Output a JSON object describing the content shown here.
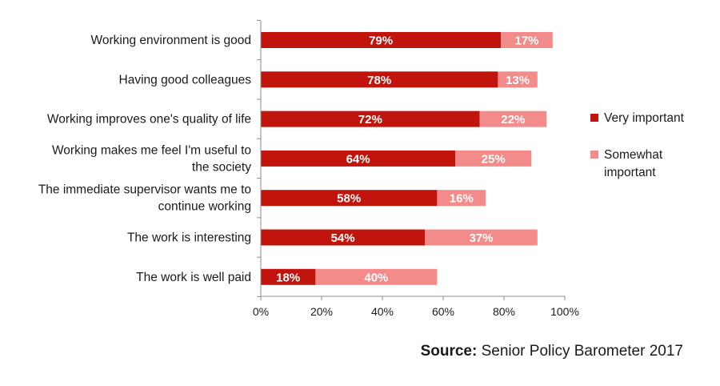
{
  "chart_data": {
    "type": "bar",
    "orientation": "horizontal",
    "stacked": true,
    "categories": [
      [
        "Working environment is good"
      ],
      [
        "Having good colleagues"
      ],
      [
        "Working improves one's quality of life"
      ],
      [
        "Working makes me feel I'm useful to",
        "the society"
      ],
      [
        "The immediate supervisor wants me to",
        "continue working"
      ],
      [
        "The work is interesting"
      ],
      [
        "The work is well paid"
      ]
    ],
    "series": [
      {
        "name": "Very important",
        "color": "#c0140c",
        "values": [
          79,
          78,
          72,
          64,
          58,
          54,
          18
        ],
        "labels": [
          "79%",
          "78%",
          "72%",
          "64%",
          "58%",
          "54%",
          "18%"
        ]
      },
      {
        "name": "Somewhat important",
        "color": "#f28b89",
        "values": [
          17,
          13,
          22,
          25,
          16,
          37,
          40
        ],
        "labels": [
          "17%",
          "13%",
          "22%",
          "25%",
          "16%",
          "37%",
          "40%"
        ]
      }
    ],
    "legend_text": [
      [
        "Very important"
      ],
      [
        "Somewhat",
        "important"
      ]
    ],
    "xlim": [
      0,
      100
    ],
    "xticks": [
      0,
      20,
      40,
      60,
      80,
      100
    ],
    "xtick_labels": [
      "0%",
      "20%",
      "40%",
      "60%",
      "80%",
      "100%"
    ],
    "grid": false,
    "legend": "right"
  },
  "source": {
    "prefix": "Source:",
    "text": " Senior Policy Barometer 2017"
  }
}
